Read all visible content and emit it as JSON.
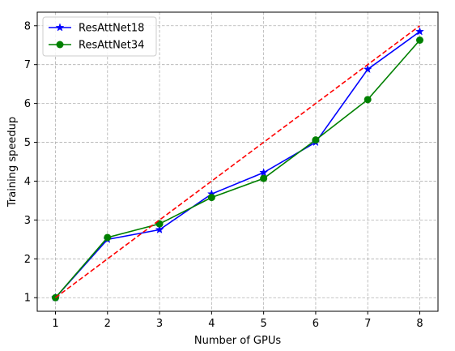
{
  "chart_data": {
    "type": "line",
    "xlabel": "Number of GPUs",
    "ylabel": "Training speedup",
    "xlim": [
      0.65,
      8.35
    ],
    "ylim": [
      0.65,
      8.35
    ],
    "x_ticks": [
      1,
      2,
      3,
      4,
      5,
      6,
      7,
      8
    ],
    "y_ticks": [
      1,
      2,
      3,
      4,
      5,
      6,
      7,
      8
    ],
    "grid": true,
    "legend_position": "top-left",
    "x": [
      1,
      2,
      3,
      4,
      5,
      6,
      7,
      8
    ],
    "series": [
      {
        "name": "ResAttNet18",
        "values": [
          1.0,
          2.5,
          2.75,
          3.67,
          4.22,
          5.0,
          6.88,
          7.85
        ],
        "color": "#0000ff",
        "marker": "star",
        "line_style": "solid"
      },
      {
        "name": "ResAttNet34",
        "values": [
          1.0,
          2.55,
          2.9,
          3.58,
          4.07,
          5.06,
          6.1,
          7.63
        ],
        "color": "#008000",
        "marker": "circle",
        "line_style": "solid"
      },
      {
        "values": [
          1,
          2,
          3,
          4,
          5,
          6,
          7,
          8
        ],
        "color": "#ff0000",
        "marker": "none",
        "line_style": "dashed"
      }
    ]
  }
}
